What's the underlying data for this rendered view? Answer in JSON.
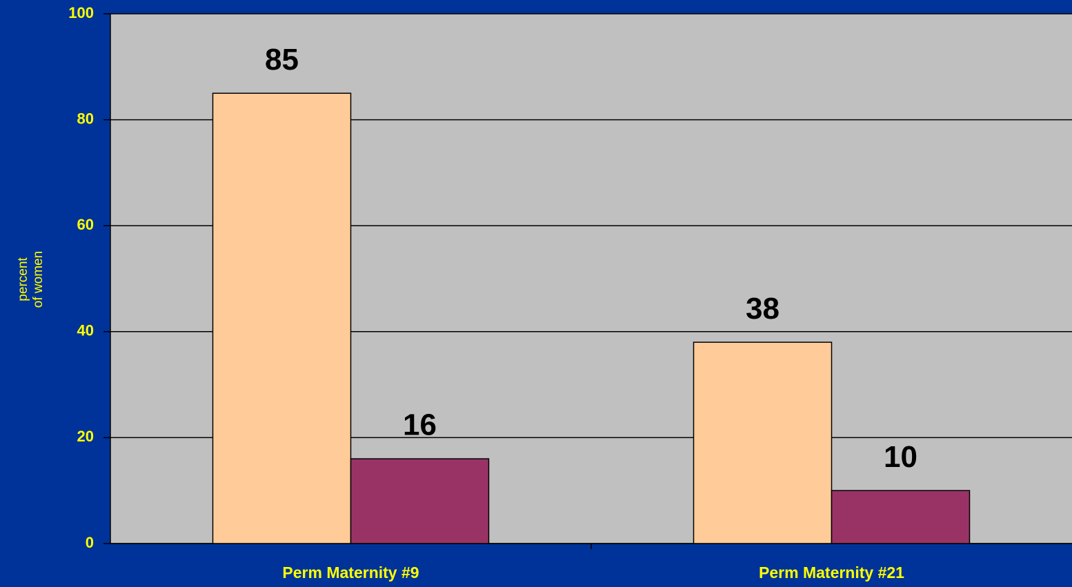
{
  "chart_data": {
    "type": "bar",
    "y_label": [
      "percent",
      "of women"
    ],
    "categories": [
      "Perm Maternity #9",
      "Perm Maternity #21"
    ],
    "series": [
      {
        "color": "#ffcc99",
        "values": [
          85,
          38
        ]
      },
      {
        "color": "#993366",
        "values": [
          16,
          10
        ]
      }
    ],
    "ylim": [
      0,
      100
    ],
    "yticks": [
      0,
      20,
      40,
      60,
      80,
      100
    ],
    "grid": true
  }
}
